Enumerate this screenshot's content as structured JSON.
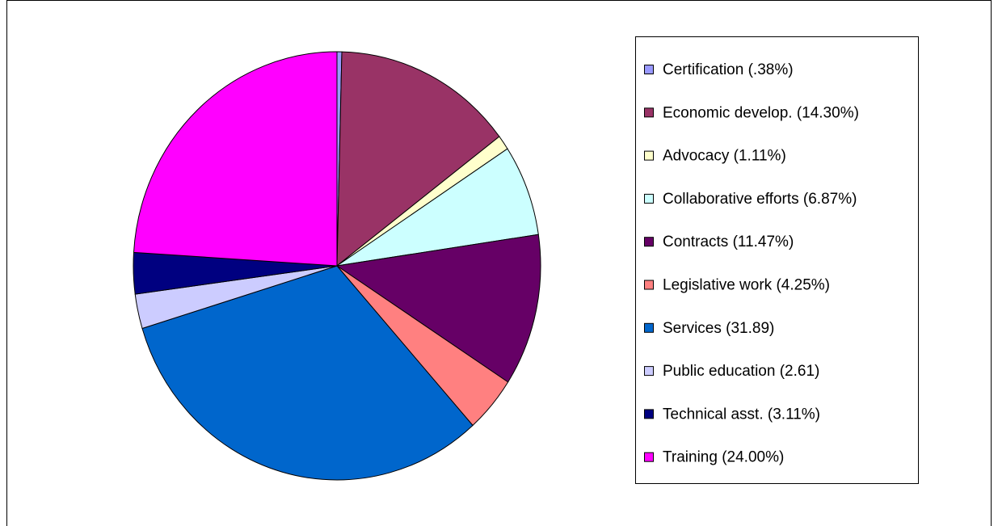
{
  "chart_data": {
    "type": "pie",
    "categories": [
      "Certification (.38%)",
      "Economic develop. (14.30%)",
      "Advocacy (1.11%)",
      "Collaborative efforts (6.87%)",
      "Contracts (11.47%)",
      "Legislative work (4.25%)",
      "Services (31.89)",
      "Public education (2.61)",
      "Technical asst. (3.11%)",
      "Training (24.00%)"
    ],
    "values": [
      0.38,
      14.3,
      1.11,
      6.87,
      11.47,
      4.25,
      31.89,
      2.61,
      3.11,
      24.0
    ],
    "colors": [
      "#9999ff",
      "#993366",
      "#ffffcc",
      "#ccffff",
      "#660066",
      "#ff8080",
      "#0066cc",
      "#ccccff",
      "#000080",
      "#ff00ff"
    ],
    "legend": "right"
  }
}
